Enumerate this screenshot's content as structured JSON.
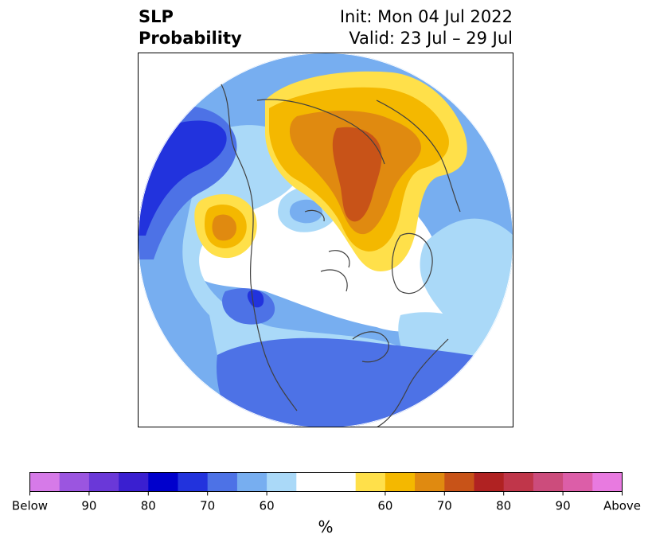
{
  "title": {
    "variable": "SLP",
    "product": "Probability",
    "init": "Init: Mon 04 Jul 2022",
    "valid": "Valid: 23 Jul – 29 Jul"
  },
  "colorbar": {
    "unit": "%",
    "colors": [
      "#d67ae8",
      "#9b55e0",
      "#6a38d8",
      "#3a1fd0",
      "#0000cc",
      "#2233dd",
      "#4d72e6",
      "#77aef0",
      "#aad9f8",
      "#ffffff",
      "#ffffff",
      "#ffe04a",
      "#f4b800",
      "#e08a10",
      "#c85318",
      "#b02222",
      "#c0364a",
      "#cc4c7c",
      "#dc5ea8",
      "#e87ae0"
    ],
    "tick_labels": [
      "Below",
      "90",
      "80",
      "70",
      "60",
      "60",
      "70",
      "80",
      "90",
      "Above"
    ]
  },
  "map": {
    "projection": "north-polar-stereographic",
    "colors": {
      "blue_light": "#aad9f8",
      "blue_mid": "#77aef0",
      "blue_dark": "#4d72e6",
      "blue_deep": "#2233dd",
      "yellow": "#ffe04a",
      "gold": "#f4b800",
      "orange": "#e08a10",
      "rust": "#c85318",
      "coast": "#404040"
    }
  }
}
